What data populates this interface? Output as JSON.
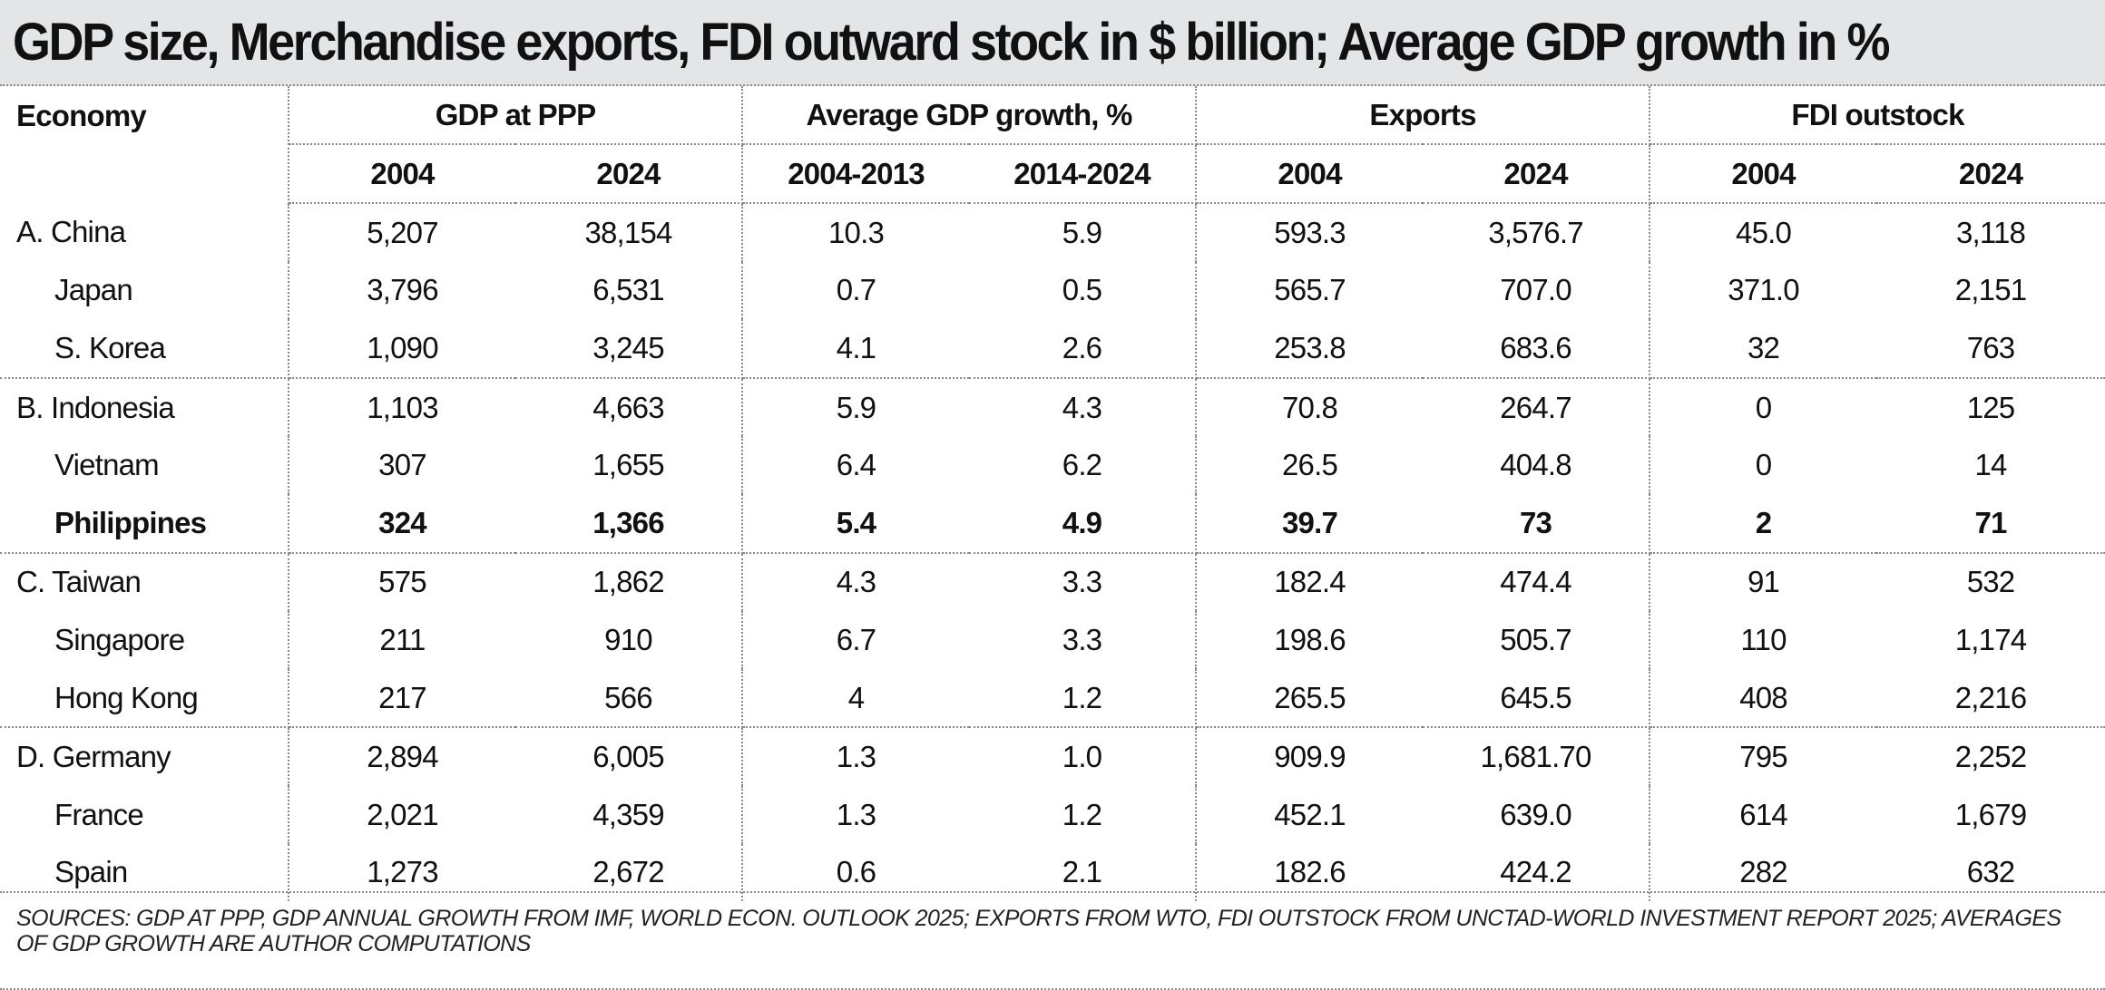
{
  "title": "GDP size, Merchandise exports, FDI outward stock in $ billion; Average GDP growth in %",
  "header": {
    "economy": "Economy",
    "groups": [
      "GDP at PPP",
      "Average GDP growth, %",
      "Exports",
      "FDI outstock"
    ],
    "subheaders": [
      "2004",
      "2024",
      "2004-2013",
      "2014-2024",
      "2004",
      "2024",
      "2004",
      "2024"
    ]
  },
  "rows": [
    {
      "economy": "A. China",
      "values": [
        "5,207",
        "38,154",
        "10.3",
        "5.9",
        "593.3",
        "3,576.7",
        "45.0",
        "3,118"
      ]
    },
    {
      "economy": "Japan",
      "values": [
        "3,796",
        "6,531",
        "0.7",
        "0.5",
        "565.7",
        "707.0",
        "371.0",
        "2,151"
      ]
    },
    {
      "economy": "S. Korea",
      "values": [
        "1,090",
        "3,245",
        "4.1",
        "2.6",
        "253.8",
        "683.6",
        "32",
        "763"
      ]
    },
    {
      "economy": "B. Indonesia",
      "values": [
        "1,103",
        "4,663",
        "5.9",
        "4.3",
        "70.8",
        "264.7",
        "0",
        "125"
      ]
    },
    {
      "economy": "Vietnam",
      "values": [
        "307",
        "1,655",
        "6.4",
        "6.2",
        "26.5",
        "404.8",
        "0",
        "14"
      ]
    },
    {
      "economy": "Philippines",
      "values": [
        "324",
        "1,366",
        "5.4",
        "4.9",
        "39.7",
        "73",
        "2",
        "71"
      ]
    },
    {
      "economy": "C. Taiwan",
      "values": [
        "575",
        "1,862",
        "4.3",
        "3.3",
        "182.4",
        "474.4",
        "91",
        "532"
      ]
    },
    {
      "economy": "Singapore",
      "values": [
        "211",
        "910",
        "6.7",
        "3.3",
        "198.6",
        "505.7",
        "110",
        "1,174"
      ]
    },
    {
      "economy": "Hong Kong",
      "values": [
        "217",
        "566",
        "4",
        "1.2",
        "265.5",
        "645.5",
        "408",
        "2,216"
      ]
    },
    {
      "economy": "D. Germany",
      "values": [
        "2,894",
        "6,005",
        "1.3",
        "1.0",
        "909.9",
        "1,681.70",
        "795",
        "2,252"
      ]
    },
    {
      "economy": "France",
      "values": [
        "2,021",
        "4,359",
        "1.3",
        "1.2",
        "452.1",
        "639.0",
        "614",
        "1,679"
      ]
    },
    {
      "economy": "Spain",
      "values": [
        "1,273",
        "2,672",
        "0.6",
        "2.1",
        "182.6",
        "424.2",
        "282",
        "632"
      ]
    }
  ],
  "footer": "SOURCES: GDP AT PPP, GDP ANNUAL GROWTH FROM IMF, WORLD ECON. OUTLOOK 2025; EXPORTS FROM WTO, FDI OUTSTOCK FROM UNCTAD-WORLD INVESTMENT REPORT 2025; AVERAGES OF GDP GROWTH ARE AUTHOR COMPUTATIONS",
  "chart_data": {
    "type": "table",
    "title": "GDP size, Merchandise exports, FDI outward stock in $ billion; Average GDP growth in %",
    "columns": [
      "Economy",
      "GDP at PPP 2004",
      "GDP at PPP 2024",
      "Average GDP growth, % 2004-2013",
      "Average GDP growth, % 2014-2024",
      "Exports 2004",
      "Exports 2024",
      "FDI outstock 2004",
      "FDI outstock 2024"
    ],
    "rows": [
      [
        "A. China",
        5207,
        38154,
        10.3,
        5.9,
        593.3,
        3576.7,
        45.0,
        3118
      ],
      [
        "Japan",
        3796,
        6531,
        0.7,
        0.5,
        565.7,
        707.0,
        371.0,
        2151
      ],
      [
        "S. Korea",
        1090,
        3245,
        4.1,
        2.6,
        253.8,
        683.6,
        32,
        763
      ],
      [
        "B. Indonesia",
        1103,
        4663,
        5.9,
        4.3,
        70.8,
        264.7,
        0,
        125
      ],
      [
        "Vietnam",
        307,
        1655,
        6.4,
        6.2,
        26.5,
        404.8,
        0,
        14
      ],
      [
        "Philippines",
        324,
        1366,
        5.4,
        4.9,
        39.7,
        73,
        2,
        71
      ],
      [
        "C. Taiwan",
        575,
        1862,
        4.3,
        3.3,
        182.4,
        474.4,
        91,
        532
      ],
      [
        "Singapore",
        211,
        910,
        6.7,
        3.3,
        198.6,
        505.7,
        110,
        1174
      ],
      [
        "Hong Kong",
        217,
        566,
        4,
        1.2,
        265.5,
        645.5,
        408,
        2216
      ],
      [
        "D. Germany",
        2894,
        6005,
        1.3,
        1.0,
        909.9,
        1681.7,
        795,
        2252
      ],
      [
        "France",
        2021,
        4359,
        1.3,
        1.2,
        452.1,
        639.0,
        614,
        1679
      ],
      [
        "Spain",
        1273,
        2672,
        0.6,
        2.1,
        182.6,
        424.2,
        282,
        632
      ]
    ]
  }
}
